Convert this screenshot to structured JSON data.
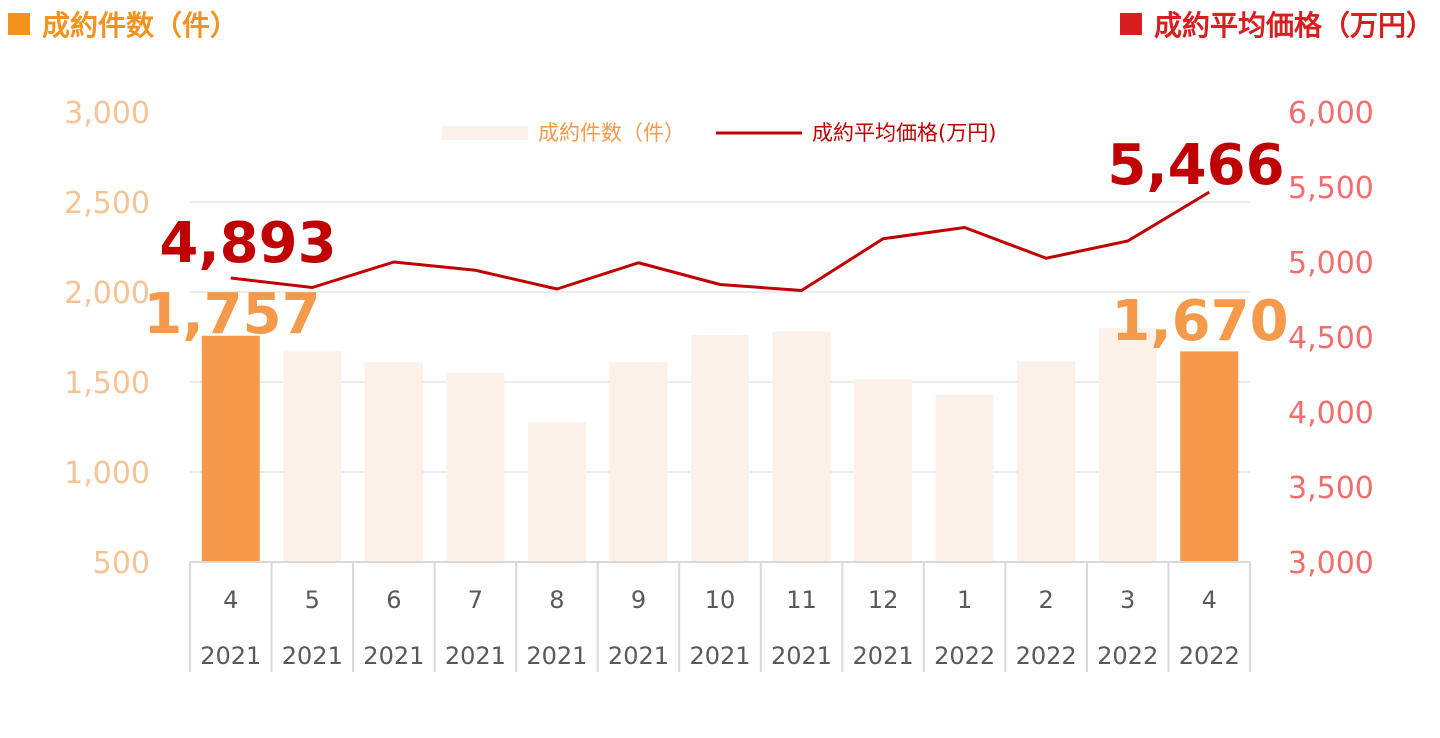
{
  "header": {
    "left_title": "成約件数（件）",
    "right_title": "成約平均価格（万円）"
  },
  "colors": {
    "bar_highlight": "#F59A4A",
    "bar_light": "#FCF1E8",
    "line": "#C00000",
    "left_axis_text": "#F8C394",
    "right_axis_text": "#F26D6D",
    "left_header": "#F5921E",
    "right_header": "#D81E1E",
    "label_count": "#F59A4A",
    "label_price": "#C00000",
    "grid": "#D9D9D9"
  },
  "chart_data": {
    "type": "bar",
    "legend": {
      "position": "top",
      "bar_label": "成約件数（件）",
      "line_label": "成約平均価格(万円)"
    },
    "categories": [
      {
        "month": "4",
        "year": "2021"
      },
      {
        "month": "5",
        "year": "2021"
      },
      {
        "month": "6",
        "year": "2021"
      },
      {
        "month": "7",
        "year": "2021"
      },
      {
        "month": "8",
        "year": "2021"
      },
      {
        "month": "9",
        "year": "2021"
      },
      {
        "month": "10",
        "year": "2021"
      },
      {
        "month": "11",
        "year": "2021"
      },
      {
        "month": "12",
        "year": "2021"
      },
      {
        "month": "1",
        "year": "2022"
      },
      {
        "month": "2",
        "year": "2022"
      },
      {
        "month": "3",
        "year": "2022"
      },
      {
        "month": "4",
        "year": "2022"
      }
    ],
    "series": [
      {
        "name": "成約件数（件）",
        "type": "bar",
        "axis": "left",
        "values": [
          1757,
          1670,
          1610,
          1550,
          1275,
          1610,
          1760,
          1780,
          1515,
          1430,
          1615,
          1800,
          1670
        ],
        "highlight": [
          0,
          12
        ]
      },
      {
        "name": "成約平均価格(万円)",
        "type": "line",
        "axis": "right",
        "values": [
          4893,
          4830,
          5000,
          4945,
          4820,
          4995,
          4850,
          4810,
          5155,
          5230,
          5025,
          5140,
          5466
        ]
      }
    ],
    "left_axis": {
      "min": 500,
      "max": 3000,
      "ticks": [
        "3,000",
        "2,500",
        "2,000",
        "1,500",
        "1,000",
        "500"
      ]
    },
    "right_axis": {
      "min": 3000,
      "max": 6000,
      "ticks": [
        "6,000",
        "5,500",
        "5,000",
        "4,500",
        "4,000",
        "3,500",
        "3,000"
      ]
    },
    "data_labels": [
      {
        "text": "1,757",
        "series": 0,
        "index": 0
      },
      {
        "text": "1,670",
        "series": 0,
        "index": 12
      },
      {
        "text": "4,893",
        "series": 1,
        "index": 0
      },
      {
        "text": "5,466",
        "series": 1,
        "index": 12
      }
    ],
    "grid": true
  }
}
